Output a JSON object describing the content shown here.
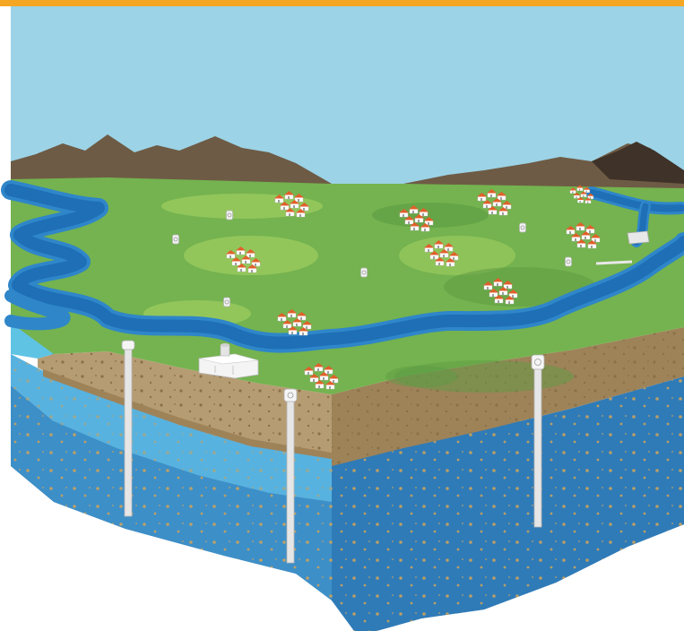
{
  "colors": {
    "top_bar": "#F5A623",
    "sky": "#9CD3E6",
    "mountain_near": "#6E5B45",
    "mountain_far": "#3F3228",
    "grass": "#74B34F",
    "grass_light": "#9ACB5E",
    "grass_dark": "#5E9B43",
    "river": "#1E6FB6",
    "river_edge": "#2F86C9",
    "soil": "#B69C73",
    "soil_dark": "#9E8359",
    "aquifer_light": "#58B2DF",
    "aquifer_mid": "#3D8FC8",
    "aquifer_deep": "#2B6FAA",
    "well": "#E6E6E6",
    "roof": "#E0602B",
    "house_wall": "#FFFFFF"
  },
  "scene": {
    "elements": [
      {
        "kind": "sky",
        "icon": "sky"
      },
      {
        "kind": "mountain-range",
        "icon": "mountain-icon"
      },
      {
        "kind": "river",
        "icon": "river-icon"
      },
      {
        "kind": "village",
        "icon": "house-cluster-icon",
        "count": 11
      },
      {
        "kind": "monitoring-well",
        "icon": "well-head-icon",
        "count": 10
      },
      {
        "kind": "treatment-plant",
        "icon": "building-icon"
      },
      {
        "kind": "dam",
        "icon": "dam-icon"
      },
      {
        "kind": "soil-layer",
        "icon": "soil-icon"
      },
      {
        "kind": "aquifer",
        "icon": "aquifer-icon",
        "count": 2
      }
    ]
  }
}
